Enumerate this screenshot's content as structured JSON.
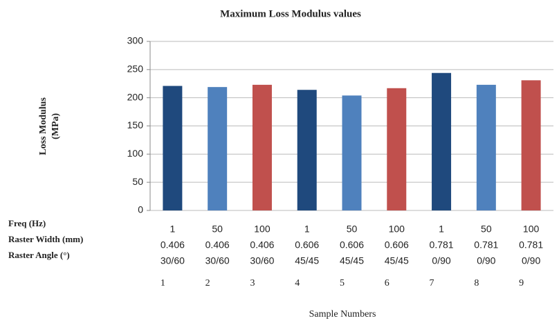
{
  "chart_data": {
    "type": "bar",
    "title": "Maximum Loss Modulus values",
    "y_label": [
      "Loss Modulus",
      "(MPa)"
    ],
    "x_label": "Sample Numbers",
    "categories": [
      "1",
      "2",
      "3",
      "4",
      "5",
      "6",
      "7",
      "8",
      "9"
    ],
    "category_rows": [
      {
        "name": "Freq (Hz)",
        "values": [
          "1",
          "50",
          "100",
          "1",
          "50",
          "100",
          "1",
          "50",
          "100"
        ]
      },
      {
        "name": "Raster Width (mm)",
        "values": [
          "0.406",
          "0.406",
          "0.406",
          "0.606",
          "0.606",
          "0.606",
          "0.781",
          "0.781",
          "0.781"
        ]
      },
      {
        "name": "Raster Angle (°)",
        "values": [
          "30/60",
          "30/60",
          "30/60",
          "45/45",
          "45/45",
          "45/45",
          "0/90",
          "0/90",
          "0/90"
        ]
      }
    ],
    "values": [
      221,
      219,
      223,
      214,
      204,
      217,
      244,
      223,
      231
    ],
    "colors": [
      "#1f497d",
      "#4f81bd",
      "#c0504d",
      "#1f497d",
      "#4f81bd",
      "#c0504d",
      "#1f497d",
      "#4f81bd",
      "#c0504d"
    ],
    "ylim": [
      0,
      300
    ],
    "yticks": [
      0,
      50,
      100,
      150,
      200,
      250,
      300
    ],
    "grid": true
  }
}
